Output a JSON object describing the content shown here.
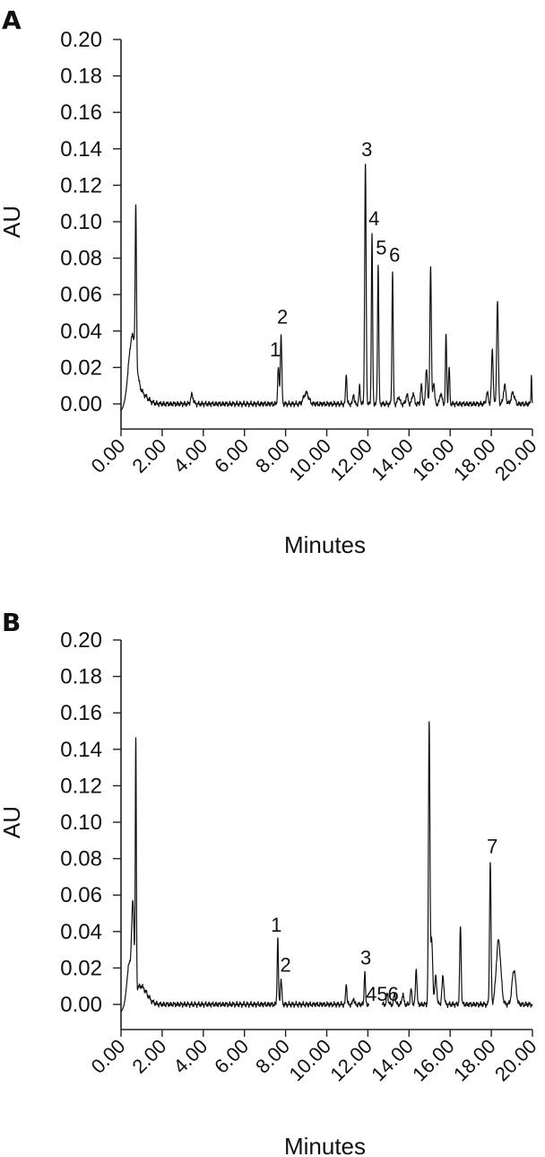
{
  "chart_data": [
    {
      "type": "line",
      "panel": "A",
      "xlabel": "Minutes",
      "ylabel": "AU",
      "xlim": [
        0,
        20
      ],
      "ylim": [
        -0.006,
        0.2
      ],
      "x_ticks": [
        "0.00",
        "2.00",
        "4.00",
        "6.00",
        "8.00",
        "10.00",
        "12.00",
        "14.00",
        "16.00",
        "18.00",
        "20.00"
      ],
      "y_ticks": [
        "0.20",
        "0.18",
        "0.16",
        "0.14",
        "0.12",
        "0.10",
        "0.08",
        "0.06",
        "0.04",
        "0.02",
        "0.00"
      ],
      "series": [
        {
          "peaks": [
            {
              "x": 0.55,
              "h": 0.035,
              "w": 0.18
            },
            {
              "x": 0.72,
              "h": 0.082,
              "w": 0.03
            },
            {
              "x": 0.95,
              "h": 0.006,
              "w": 0.3
            },
            {
              "x": 3.45,
              "h": 0.005,
              "w": 0.06
            },
            {
              "x": 7.65,
              "h": 0.02,
              "w": 0.035
            },
            {
              "x": 7.78,
              "h": 0.038,
              "w": 0.035
            },
            {
              "x": 9.0,
              "h": 0.006,
              "w": 0.12
            },
            {
              "x": 10.95,
              "h": 0.017,
              "w": 0.03
            },
            {
              "x": 11.3,
              "h": 0.006,
              "w": 0.03
            },
            {
              "x": 11.6,
              "h": 0.01,
              "w": 0.03
            },
            {
              "x": 11.88,
              "h": 0.131,
              "w": 0.035
            },
            {
              "x": 12.2,
              "h": 0.093,
              "w": 0.03
            },
            {
              "x": 12.5,
              "h": 0.077,
              "w": 0.03
            },
            {
              "x": 13.2,
              "h": 0.073,
              "w": 0.03
            },
            {
              "x": 13.5,
              "h": 0.004,
              "w": 0.05
            },
            {
              "x": 13.9,
              "h": 0.005,
              "w": 0.05
            },
            {
              "x": 14.2,
              "h": 0.006,
              "w": 0.05
            },
            {
              "x": 14.6,
              "h": 0.01,
              "w": 0.04
            },
            {
              "x": 14.85,
              "h": 0.02,
              "w": 0.04
            },
            {
              "x": 15.05,
              "h": 0.076,
              "w": 0.035
            },
            {
              "x": 15.2,
              "h": 0.012,
              "w": 0.04
            },
            {
              "x": 15.55,
              "h": 0.006,
              "w": 0.05
            },
            {
              "x": 15.8,
              "h": 0.038,
              "w": 0.03
            },
            {
              "x": 15.95,
              "h": 0.02,
              "w": 0.03
            },
            {
              "x": 17.8,
              "h": 0.006,
              "w": 0.05
            },
            {
              "x": 18.05,
              "h": 0.03,
              "w": 0.04
            },
            {
              "x": 18.3,
              "h": 0.056,
              "w": 0.04
            },
            {
              "x": 18.65,
              "h": 0.01,
              "w": 0.06
            },
            {
              "x": 19.05,
              "h": 0.006,
              "w": 0.08
            },
            {
              "x": 19.95,
              "h": 0.016,
              "w": 0.02
            }
          ]
        }
      ],
      "peak_labels": [
        {
          "text": "1",
          "x": 7.5,
          "y": 0.026
        },
        {
          "text": "2",
          "x": 7.85,
          "y": 0.044
        },
        {
          "text": "3",
          "x": 11.95,
          "y": 0.136
        },
        {
          "text": "4",
          "x": 12.3,
          "y": 0.098
        },
        {
          "text": "5",
          "x": 12.65,
          "y": 0.082
        },
        {
          "text": "6",
          "x": 13.3,
          "y": 0.078
        }
      ]
    },
    {
      "type": "line",
      "panel": "B",
      "xlabel": "Minutes",
      "ylabel": "AU",
      "xlim": [
        0,
        20
      ],
      "ylim": [
        -0.006,
        0.2
      ],
      "x_ticks": [
        "0.00",
        "2.00",
        "4.00",
        "6.00",
        "8.00",
        "10.00",
        "12.00",
        "14.00",
        "16.00",
        "18.00",
        "20.00"
      ],
      "y_ticks": [
        "0.20",
        "0.18",
        "0.16",
        "0.14",
        "0.12",
        "0.10",
        "0.08",
        "0.06",
        "0.04",
        "0.02",
        "0.00"
      ],
      "series": [
        {
          "peaks": [
            {
              "x": 0.4,
              "h": 0.02,
              "w": 0.12
            },
            {
              "x": 0.58,
              "h": 0.045,
              "w": 0.06
            },
            {
              "x": 0.72,
              "h": 0.135,
              "w": 0.025
            },
            {
              "x": 0.95,
              "h": 0.01,
              "w": 0.3
            },
            {
              "x": 7.62,
              "h": 0.036,
              "w": 0.03
            },
            {
              "x": 7.78,
              "h": 0.014,
              "w": 0.035
            },
            {
              "x": 10.95,
              "h": 0.012,
              "w": 0.03
            },
            {
              "x": 11.3,
              "h": 0.004,
              "w": 0.03
            },
            {
              "x": 11.85,
              "h": 0.018,
              "w": 0.03
            },
            {
              "x": 12.95,
              "h": 0.006,
              "w": 0.04
            },
            {
              "x": 13.3,
              "h": 0.006,
              "w": 0.04
            },
            {
              "x": 13.7,
              "h": 0.006,
              "w": 0.04
            },
            {
              "x": 14.1,
              "h": 0.008,
              "w": 0.04
            },
            {
              "x": 14.35,
              "h": 0.02,
              "w": 0.035
            },
            {
              "x": 14.98,
              "h": 0.153,
              "w": 0.035
            },
            {
              "x": 15.1,
              "h": 0.035,
              "w": 0.05
            },
            {
              "x": 15.3,
              "h": 0.015,
              "w": 0.05
            },
            {
              "x": 15.65,
              "h": 0.015,
              "w": 0.05
            },
            {
              "x": 16.5,
              "h": 0.043,
              "w": 0.035
            },
            {
              "x": 17.95,
              "h": 0.078,
              "w": 0.035
            },
            {
              "x": 18.35,
              "h": 0.035,
              "w": 0.11
            },
            {
              "x": 19.1,
              "h": 0.019,
              "w": 0.09
            }
          ],
          "gaps": [
            [
              12.05,
              12.7
            ]
          ]
        }
      ],
      "peak_labels": [
        {
          "text": "1",
          "x": 7.55,
          "y": 0.04
        },
        {
          "text": "2",
          "x": 8.0,
          "y": 0.018
        },
        {
          "text": "3",
          "x": 11.9,
          "y": 0.022
        },
        {
          "text": "456",
          "x": 12.7,
          "y": 0.002
        },
        {
          "text": "7",
          "x": 18.05,
          "y": 0.083
        }
      ]
    }
  ]
}
